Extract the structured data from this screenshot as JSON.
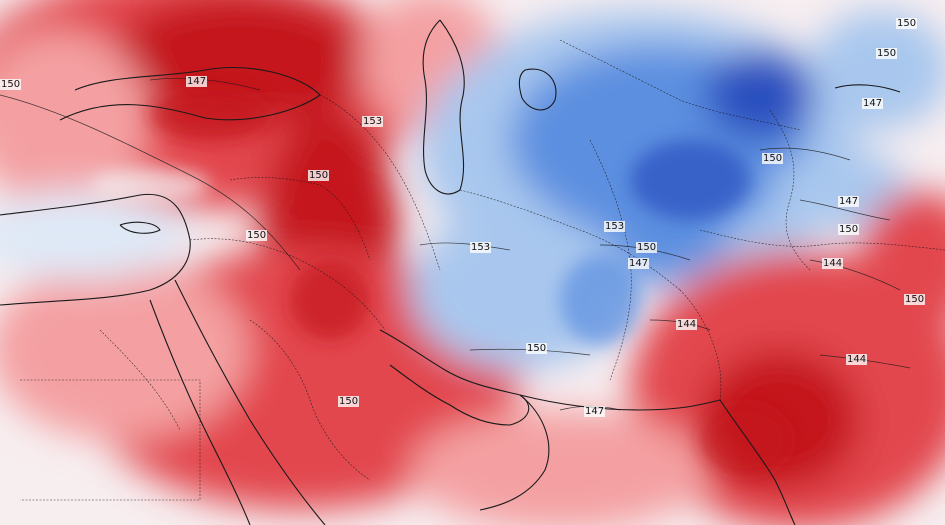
{
  "map": {
    "palette": {
      "warm_deep": "#c4121e",
      "warm_mid": "#e2474e",
      "warm_light": "#f4a0a2",
      "neutral": "#f7eef0",
      "cool_light": "#a9c7ee",
      "cool_mid": "#5b8fe0",
      "cool_deep": "#2a4fbf",
      "sea_blue": "#dfe9f7",
      "line": "#1a1a1a"
    },
    "contour_labels": [
      {
        "id": "tl-150",
        "text": "150"
      },
      {
        "id": "caucasus-147",
        "text": "147"
      },
      {
        "id": "caspian-153",
        "text": "153"
      },
      {
        "id": "iraq-150",
        "text": "150"
      },
      {
        "id": "arabia-n-150",
        "text": "150"
      },
      {
        "id": "iran-153",
        "text": "153"
      },
      {
        "id": "afg-153",
        "text": "153"
      },
      {
        "id": "afg-150",
        "text": "150"
      },
      {
        "id": "afg-147",
        "text": "147"
      },
      {
        "id": "iran-s-150",
        "text": "150"
      },
      {
        "id": "pak-144",
        "text": "144"
      },
      {
        "id": "gulf-147",
        "text": "147"
      },
      {
        "id": "arabia-c-150",
        "text": "150"
      },
      {
        "id": "china-150",
        "text": "150"
      },
      {
        "id": "china-147",
        "text": "147"
      },
      {
        "id": "tarim-150",
        "text": "150"
      },
      {
        "id": "tibet-147",
        "text": "147"
      },
      {
        "id": "tibet-150",
        "text": "150"
      },
      {
        "id": "tibet-144",
        "text": "144"
      },
      {
        "id": "tibet-150b",
        "text": "150"
      },
      {
        "id": "india-144",
        "text": "144"
      },
      {
        "id": "ne-150",
        "text": "150"
      }
    ]
  }
}
